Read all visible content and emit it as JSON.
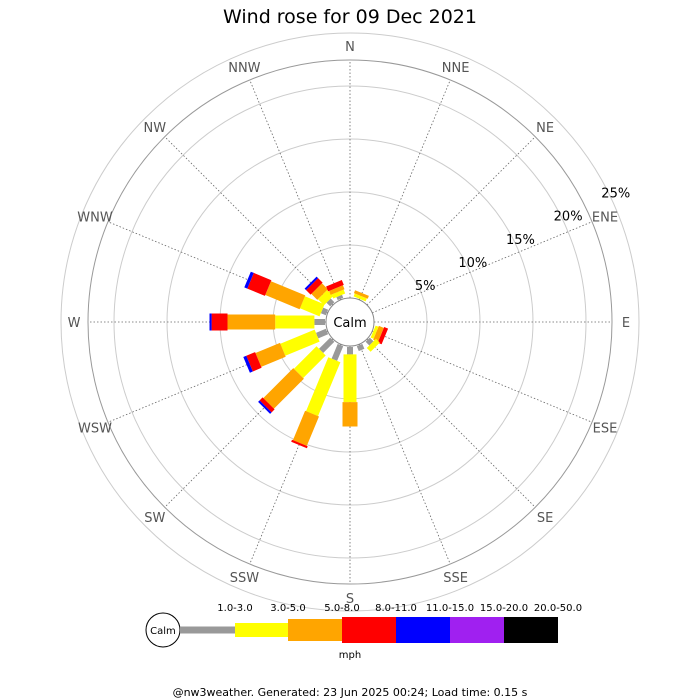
{
  "title": "Wind rose for 09 Dec 2021",
  "footer": "@nw3weather. Generated: 23 Jun 2025 00:24; Load time: 0.15 s",
  "calm_label": "Calm",
  "ring_labels": [
    "5%",
    "10%",
    "15%",
    "20%",
    "25%"
  ],
  "directions": [
    "N",
    "NNE",
    "NE",
    "ENE",
    "E",
    "ESE",
    "SE",
    "SSE",
    "S",
    "SSW",
    "SW",
    "WSW",
    "W",
    "WNW",
    "NW",
    "NNW"
  ],
  "legend": {
    "calm_label": "Calm",
    "unit": "mph",
    "bins": [
      {
        "label": "1.0-3.0",
        "color": "#999999"
      },
      {
        "label": "3.0-5.0",
        "color": "#ffff00"
      },
      {
        "label": "5.0-8.0",
        "color": "#ffa500"
      },
      {
        "label": "8.0-11.0",
        "color": "#ff0000"
      },
      {
        "label": "11.0-15.0",
        "color": "#0000ff"
      },
      {
        "label": "15.0-20.0",
        "color": "#a020f0"
      },
      {
        "label": "20.0-50.0",
        "color": "#000000"
      }
    ]
  },
  "chart_data": {
    "type": "wind-rose",
    "title": "Wind rose for 09 Dec 2021",
    "unit": "mph",
    "radial_axis": {
      "ticks": [
        5,
        10,
        15,
        20,
        25
      ],
      "unit": "%",
      "max": 25
    },
    "directions": [
      "N",
      "NNE",
      "NE",
      "ENE",
      "E",
      "ESE",
      "SE",
      "SSE",
      "S",
      "SSW",
      "SW",
      "WSW",
      "W",
      "WNW",
      "NW",
      "NNW"
    ],
    "speed_bins": [
      "1.0-3.0",
      "3.0-5.0",
      "5.0-8.0",
      "8.0-11.0",
      "11.0-15.0",
      "15.0-20.0",
      "20.0-50.0"
    ],
    "series": [
      {
        "name": "1.0-3.0",
        "values": [
          0,
          0,
          0,
          0,
          0,
          0,
          0.5,
          0.5,
          0.7,
          1.5,
          1.5,
          1.0,
          1.0,
          0.5,
          0.5,
          0.3
        ]
      },
      {
        "name": "3.0-5.0",
        "values": [
          0,
          0.3,
          0,
          0,
          0,
          0.3,
          0.5,
          0,
          4.5,
          5.5,
          3.0,
          3.5,
          3.7,
          2.0,
          0.8,
          0.4
        ]
      },
      {
        "name": "5.0-8.0",
        "values": [
          0,
          0.3,
          0,
          0,
          0,
          0.5,
          0,
          0,
          2.3,
          3.0,
          4.0,
          2.5,
          4.5,
          3.5,
          0.8,
          0.4
        ]
      },
      {
        "name": "8.0-11.0",
        "values": [
          0,
          0,
          0,
          0,
          0,
          0.4,
          0,
          0,
          0,
          0.2,
          0.4,
          0.9,
          1.5,
          1.8,
          0.6,
          0.5
        ]
      },
      {
        "name": "11.0-15.0",
        "values": [
          0,
          0,
          0,
          0,
          0,
          0,
          0,
          0,
          0,
          0,
          0.2,
          0.3,
          0.2,
          0.3,
          0.2,
          0
        ]
      },
      {
        "name": "15.0-20.0",
        "values": [
          0,
          0,
          0,
          0,
          0,
          0,
          0,
          0,
          0,
          0,
          0,
          0,
          0,
          0,
          0,
          0
        ]
      },
      {
        "name": "20.0-50.0",
        "values": [
          0,
          0,
          0,
          0,
          0,
          0,
          0,
          0,
          0,
          0,
          0,
          0,
          0,
          0,
          0,
          0
        ]
      }
    ]
  }
}
